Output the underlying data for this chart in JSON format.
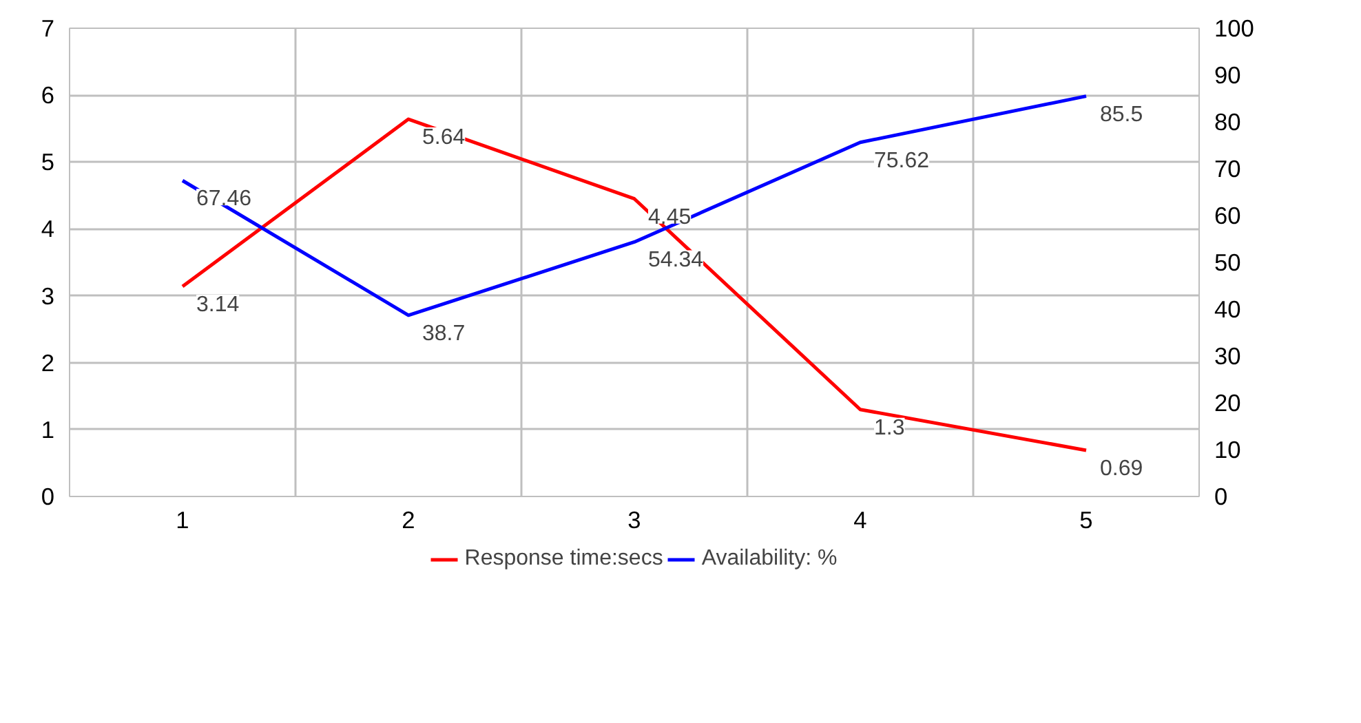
{
  "chart_data": {
    "type": "line",
    "categories": [
      "1",
      "2",
      "3",
      "4",
      "5"
    ],
    "series": [
      {
        "name": "Response time:secs",
        "color": "#ff0000",
        "values": [
          3.14,
          5.64,
          4.45,
          1.3,
          0.69
        ]
      },
      {
        "name": "Availability: %",
        "color": "#0000ff",
        "values": [
          67.46,
          38.7,
          54.34,
          75.62,
          85.5
        ],
        "axis": "y2"
      }
    ],
    "ylim": [
      0,
      7
    ],
    "yticks": [
      0,
      1,
      2,
      3,
      4,
      5,
      6,
      7
    ],
    "y2lim": [
      0,
      100
    ],
    "y2ticks": [
      0,
      10,
      20,
      30,
      40,
      50,
      60,
      70,
      80,
      90,
      100
    ],
    "data_labels": true,
    "grid": true,
    "legend": "bottom",
    "marker": "none",
    "line_style": "solid"
  }
}
